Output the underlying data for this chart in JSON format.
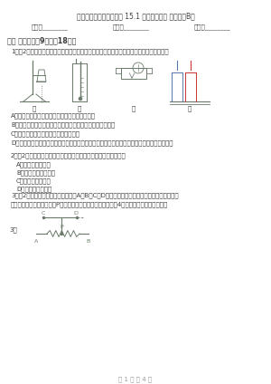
{
  "title": "沪科版物理九年级上学期 15.1 电阻和变阻器 同步练习B卷",
  "info_line_parts": [
    "姓名：________",
    "班级：________",
    "成绩：________"
  ],
  "section1": "一、 单选题（共9题；共18分）",
  "q1_text1": "1．（2分）如图所示，物理实验中经常需要对物体加热，下列装置中与实际场合吻合的是：",
  "q1_labels": [
    "甲",
    "乙",
    "丙",
    "丁"
  ],
  "q1_options": [
    "A．甲图中，加热时最终能引起讨论的数量效果多",
    "B．乙图中，对烧锅的水进行加热，温度计的示数和不断增大",
    "C．丙图中，对电阻丝加热，灯泡将变暗",
    "D．丁图中，用完全相同的数量密封瓶，装相同时间的水和花生油加热，水的温度升高等快一些"
  ],
  "q2_text": "2．（2分）下列因素中，对导体电阻大小有决定作用的是（　　）",
  "q2_options": [
    "A．导体的横截面积",
    "B．导体是否接入电路",
    "C．通过导体的电流",
    "D．导体两端的电压"
  ],
  "q3_text1": "3．（2分）如图所示，将功变阻器有A、B、C、D四个接线柱，将这变阻器与一个小灯泡和磁",
  "q3_text2": "芯接入电路，通电后把滑片P向右移动，小灯泡逐渐变亮，上述4种接法中正确的是（　　）",
  "page_footer": "第 1 页 共 4 页",
  "bg_color": "#ffffff",
  "text_color": "#3c3c3c",
  "light_text": "#555555",
  "diagram_color": "#6a7a6a",
  "red_color": "#cc3333"
}
